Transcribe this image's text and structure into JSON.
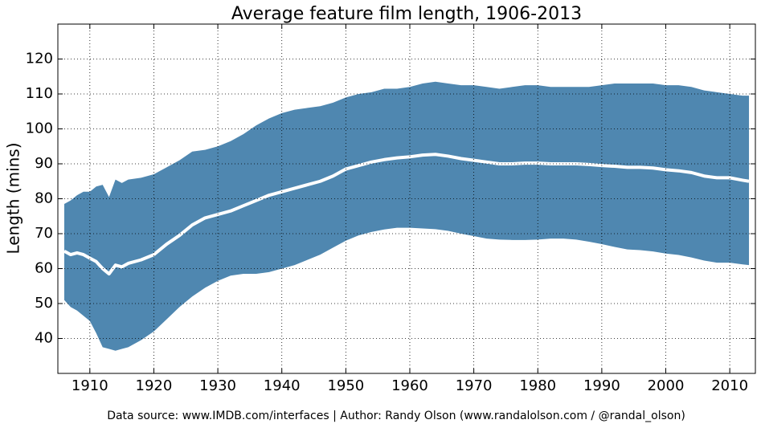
{
  "chart_data": {
    "type": "band-line",
    "title": "Average feature film length, 1906-2013",
    "y_label": "Length (mins)",
    "source": "Data source: www.IMDB.com/interfaces | Author: Randy Olson (www.randalolson.com / @randal_olson)",
    "x": [
      1906,
      1907,
      1908,
      1909,
      1910,
      1911,
      1912,
      1913,
      1914,
      1915,
      1916,
      1918,
      1920,
      1922,
      1924,
      1926,
      1928,
      1930,
      1932,
      1934,
      1936,
      1938,
      1940,
      1942,
      1944,
      1946,
      1948,
      1950,
      1952,
      1954,
      1956,
      1958,
      1960,
      1962,
      1964,
      1966,
      1968,
      1970,
      1972,
      1974,
      1976,
      1978,
      1980,
      1982,
      1984,
      1986,
      1988,
      1990,
      1992,
      1994,
      1996,
      1998,
      2000,
      2002,
      2004,
      2006,
      2008,
      2010,
      2012,
      2013
    ],
    "band": {
      "color": "#4f87b0",
      "upper": [
        78.5,
        79.5,
        81,
        82,
        82,
        83.5,
        84,
        80.5,
        85.5,
        84.5,
        85.5,
        86,
        87,
        89,
        91,
        93.5,
        94,
        95,
        96.5,
        98.5,
        101,
        103,
        104.5,
        105.5,
        106,
        106.5,
        107.5,
        109,
        110,
        110.5,
        111.5,
        111.5,
        112,
        113,
        113.5,
        113,
        112.5,
        112.5,
        112,
        111.5,
        112,
        112.5,
        112.5,
        112,
        112,
        112,
        112,
        112.5,
        113,
        113,
        113,
        113,
        112.5,
        112.5,
        112,
        111,
        110.5,
        110,
        109.5,
        109.5
      ],
      "lower": [
        51,
        49,
        48,
        46.5,
        45,
        41.5,
        37.5,
        37,
        36.5,
        37,
        37.5,
        39.5,
        42,
        45.5,
        49,
        52,
        54.5,
        56.5,
        58,
        58.5,
        58.5,
        59,
        60,
        61,
        62.5,
        64,
        66,
        68,
        69.5,
        70.5,
        71.2,
        71.7,
        71.7,
        71.5,
        71.3,
        70.8,
        70,
        69.3,
        68.6,
        68.3,
        68.2,
        68.2,
        68.3,
        68.6,
        68.6,
        68.3,
        67.7,
        67,
        66.2,
        65.5,
        65.3,
        64.9,
        64.3,
        63.9,
        63.2,
        62.3,
        61.7,
        61.7,
        61.2,
        61
      ]
    },
    "line": {
      "color": "#ffffff",
      "values": [
        65,
        64,
        64.5,
        64,
        63,
        62,
        60,
        58.5,
        61,
        60.5,
        61.5,
        62.5,
        64,
        67,
        69.5,
        72.5,
        74.5,
        75.5,
        76.5,
        78,
        79.5,
        81,
        82,
        83,
        84,
        85,
        86.5,
        88.5,
        89.5,
        90.5,
        91.2,
        91.7,
        92,
        92.5,
        92.7,
        92.2,
        91.5,
        91,
        90.5,
        90,
        90,
        90.2,
        90.2,
        90,
        90,
        90,
        89.8,
        89.5,
        89.3,
        89,
        89,
        88.8,
        88.3,
        88,
        87.5,
        86.5,
        86,
        86,
        85.3,
        85
      ]
    },
    "xlim": [
      1905,
      2014
    ],
    "ylim": [
      30,
      130
    ],
    "xticks": [
      1910,
      1920,
      1930,
      1940,
      1950,
      1960,
      1970,
      1980,
      1990,
      2000,
      2010
    ],
    "yticks": [
      40,
      50,
      60,
      70,
      80,
      90,
      100,
      110,
      120
    ],
    "grid": true
  }
}
